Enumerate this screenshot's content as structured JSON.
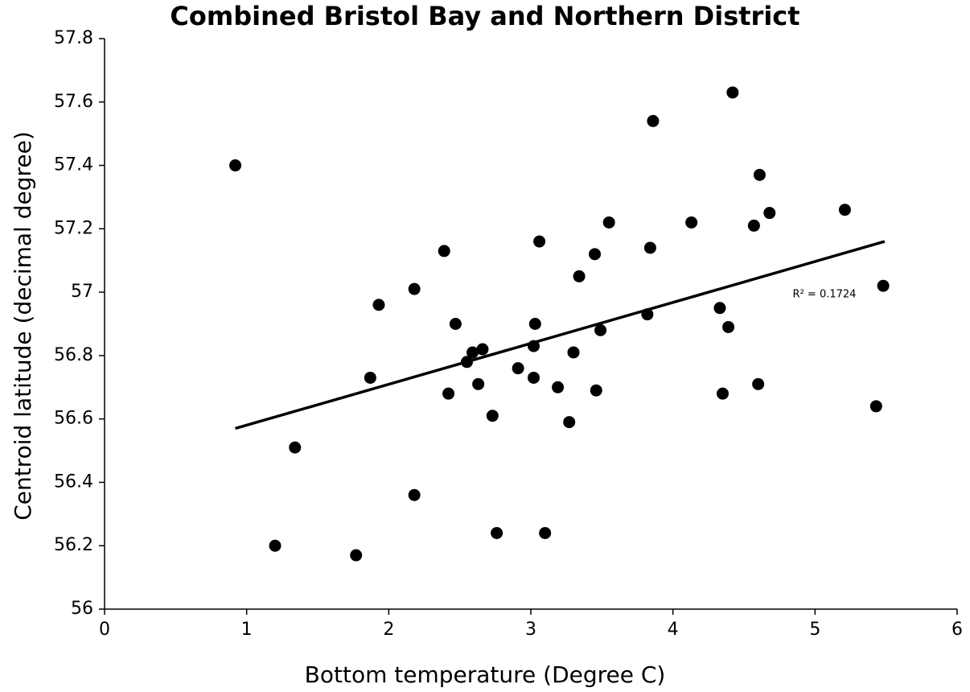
{
  "chart_data": {
    "type": "scatter",
    "title": "Combined Bristol Bay and Northern District",
    "x_label": "Bottom temperature (Degree C)",
    "y_label": "Centroid latitude (decimal degree)",
    "annotation": "R² = 0.1724",
    "color": "#000000",
    "x": [
      0.92,
      1.2,
      1.34,
      1.77,
      1.87,
      1.93,
      2.18,
      2.18,
      2.39,
      2.42,
      2.47,
      2.55,
      2.59,
      2.63,
      2.66,
      2.73,
      2.76,
      2.91,
      3.02,
      3.03,
      3.02,
      3.06,
      3.1,
      3.19,
      3.27,
      3.3,
      3.34,
      3.45,
      3.46,
      3.49,
      3.55,
      3.82,
      3.84,
      3.86,
      4.13,
      4.33,
      4.35,
      4.39,
      4.42,
      4.57,
      4.6,
      4.61,
      4.68,
      5.21,
      5.43,
      5.48
    ],
    "values": [
      57.4,
      56.2,
      56.51,
      56.17,
      56.73,
      56.96,
      57.01,
      56.36,
      57.13,
      56.68,
      56.9,
      56.78,
      56.81,
      56.71,
      56.82,
      56.61,
      56.24,
      56.76,
      56.83,
      56.9,
      56.73,
      57.16,
      56.24,
      56.7,
      56.59,
      56.81,
      57.05,
      57.12,
      56.69,
      56.88,
      57.22,
      56.93,
      57.14,
      57.54,
      57.22,
      56.95,
      56.68,
      56.89,
      57.63,
      57.21,
      56.71,
      57.37,
      57.25,
      57.26,
      56.64,
      57.02
    ],
    "trendline": {
      "x": [
        0.92,
        5.49
      ],
      "values": [
        56.57,
        57.16
      ]
    },
    "xlim": [
      0,
      6
    ],
    "xticks": [
      0,
      1,
      2,
      3,
      4,
      5,
      6
    ],
    "ylim": [
      56,
      57.8
    ],
    "yticks": [
      56,
      56.2,
      56.4,
      56.6,
      56.8,
      57,
      57.2,
      57.4,
      57.6,
      57.8
    ],
    "grid": false
  }
}
